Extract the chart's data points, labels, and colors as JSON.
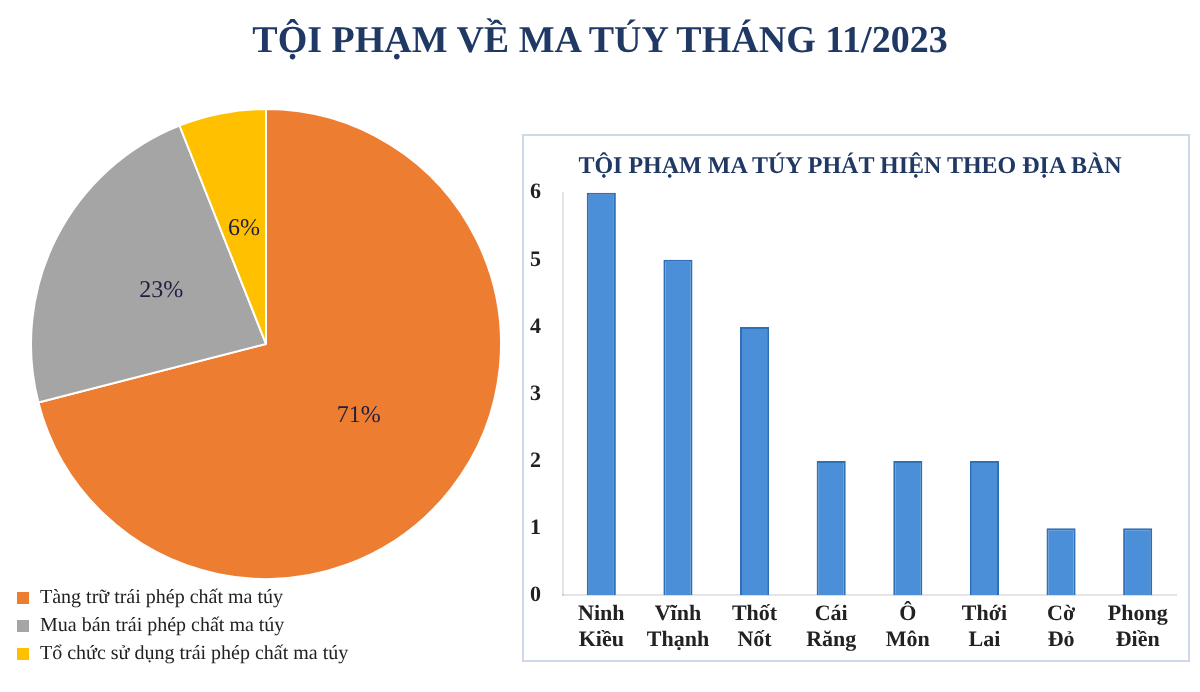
{
  "chart_data": [
    {
      "type": "pie",
      "title": "TỘI PHẠM VỀ MA TÚY THÁNG 11/2023",
      "categories": [
        "Tàng trữ trái phép chất ma túy",
        "Mua bán trái phép chất ma túy",
        "Tổ chức sử dụng trái phép chất ma túy"
      ],
      "values": [
        71,
        23,
        6
      ],
      "colors": [
        "#ed7d31",
        "#a5a5a5",
        "#ffc000"
      ],
      "value_labels": [
        "71%",
        "23%",
        "6%"
      ],
      "legend": "bottom"
    },
    {
      "type": "bar",
      "title": "TỘI PHẠM MA TÚY PHÁT HIỆN THEO ĐỊA BÀN",
      "categories": [
        "Ninh Kiều",
        "Vĩnh Thạnh",
        "Thốt Nốt",
        "Cái Răng",
        "Ô Môn",
        "Thới Lai",
        "Cờ Đỏ",
        "Phong Điền"
      ],
      "values": [
        6,
        5,
        4,
        2,
        2,
        2,
        1,
        1
      ],
      "color": "#4a8fd8",
      "ylim": [
        0,
        6
      ],
      "yticks": [
        0,
        1,
        2,
        3,
        4,
        5,
        6
      ],
      "grid": false,
      "legend": false
    }
  ]
}
